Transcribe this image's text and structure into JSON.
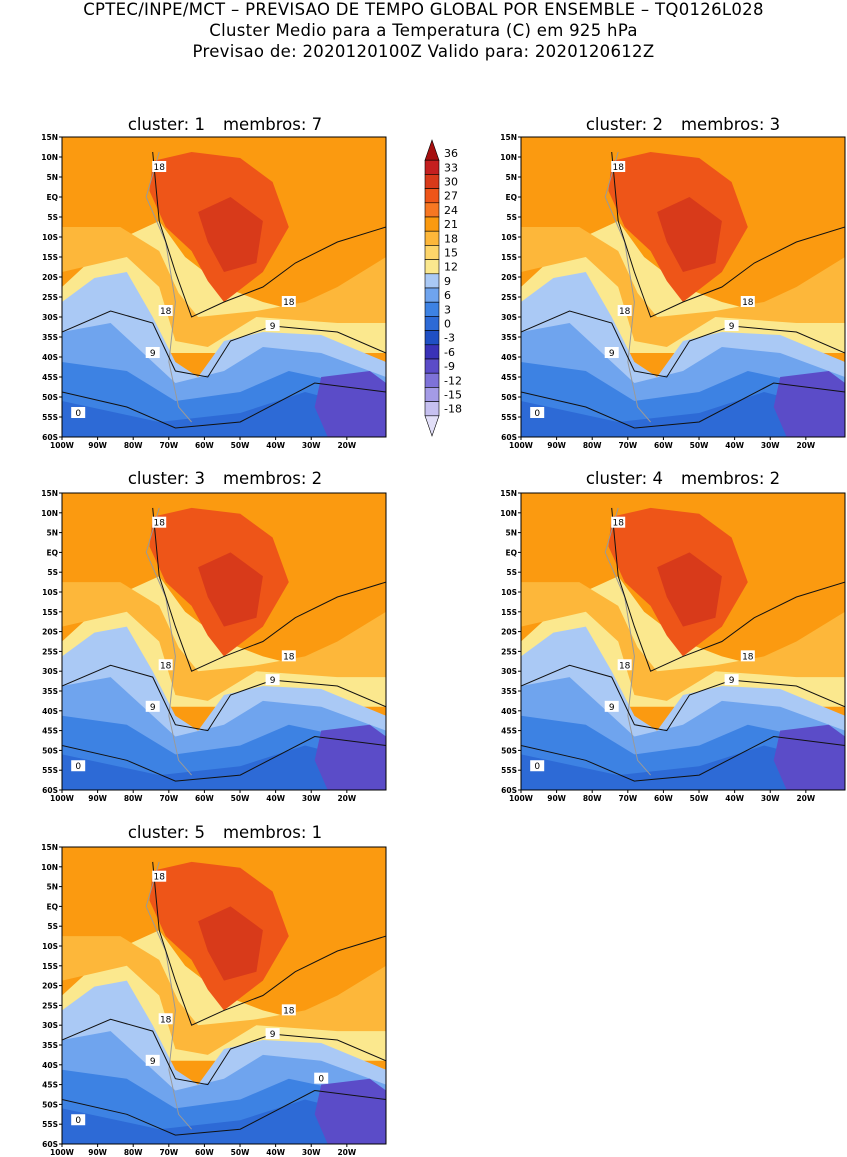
{
  "header": {
    "line1": "CPTEC/INPE/MCT – PREVISAO DE TEMPO GLOBAL POR ENSEMBLE – TQ0126L028",
    "line2": "Cluster Medio para a Temperatura (C) em 925 hPa",
    "line3": "Previsao de: 2020120100Z   Valido para: 2020120612Z"
  },
  "axes": {
    "lat_labels": [
      "15N",
      "10N",
      "5N",
      "EQ",
      "5S",
      "10S",
      "15S",
      "20S",
      "25S",
      "30S",
      "35S",
      "40S",
      "45S",
      "50S",
      "55S",
      "60S"
    ],
    "lon_labels": [
      "100W",
      "90W",
      "80W",
      "70W",
      "60W",
      "50W",
      "40W",
      "30W",
      "20W"
    ]
  },
  "panels": [
    {
      "cluster_label": "cluster: 1",
      "members_label": "membros: 7",
      "contours": [
        "18",
        "18",
        "18",
        "9",
        "9",
        "0"
      ]
    },
    {
      "cluster_label": "cluster: 2",
      "members_label": "membros: 3",
      "contours": [
        "18",
        "18",
        "18",
        "9",
        "9",
        "0"
      ]
    },
    {
      "cluster_label": "cluster: 3",
      "members_label": "membros: 2",
      "contours": [
        "18",
        "18",
        "18",
        "9",
        "9",
        "0"
      ]
    },
    {
      "cluster_label": "cluster: 4",
      "members_label": "membros: 2",
      "contours": [
        "18",
        "18",
        "18",
        "9",
        "9",
        "0"
      ]
    },
    {
      "cluster_label": "cluster: 5",
      "members_label": "membros: 1",
      "contours": [
        "18",
        "18",
        "18",
        "9",
        "9",
        "0",
        "0"
      ]
    }
  ],
  "colorbar": {
    "levels": [
      "36",
      "33",
      "30",
      "27",
      "24",
      "21",
      "18",
      "15",
      "12",
      "9",
      "6",
      "3",
      "0",
      "-3",
      "-6",
      "-9",
      "-12",
      "-15",
      "-18"
    ],
    "colors": [
      "#a50f0f",
      "#c42020",
      "#d83a1a",
      "#ee5518",
      "#f77722",
      "#fb9a10",
      "#fdb73a",
      "#fdd56a",
      "#fbe88e",
      "#aac9f5",
      "#6fa4ee",
      "#3d82e3",
      "#2d6ad6",
      "#1f4fc4",
      "#3a32b8",
      "#5b4cc8",
      "#7e72d8",
      "#a49be6",
      "#c6c0f0",
      "#e2dff8"
    ]
  },
  "colors": {
    "ocean_warm": "#fb9a10",
    "land_hot": "#ee5518",
    "land_hotter": "#d83a1a",
    "mid": "#fdb73a",
    "light": "#fbe88e",
    "cool1": "#aac9f5",
    "cool2": "#6fa4ee",
    "cool3": "#3d82e3",
    "cool4": "#2d6ad6",
    "deep": "#5b4cc8"
  }
}
